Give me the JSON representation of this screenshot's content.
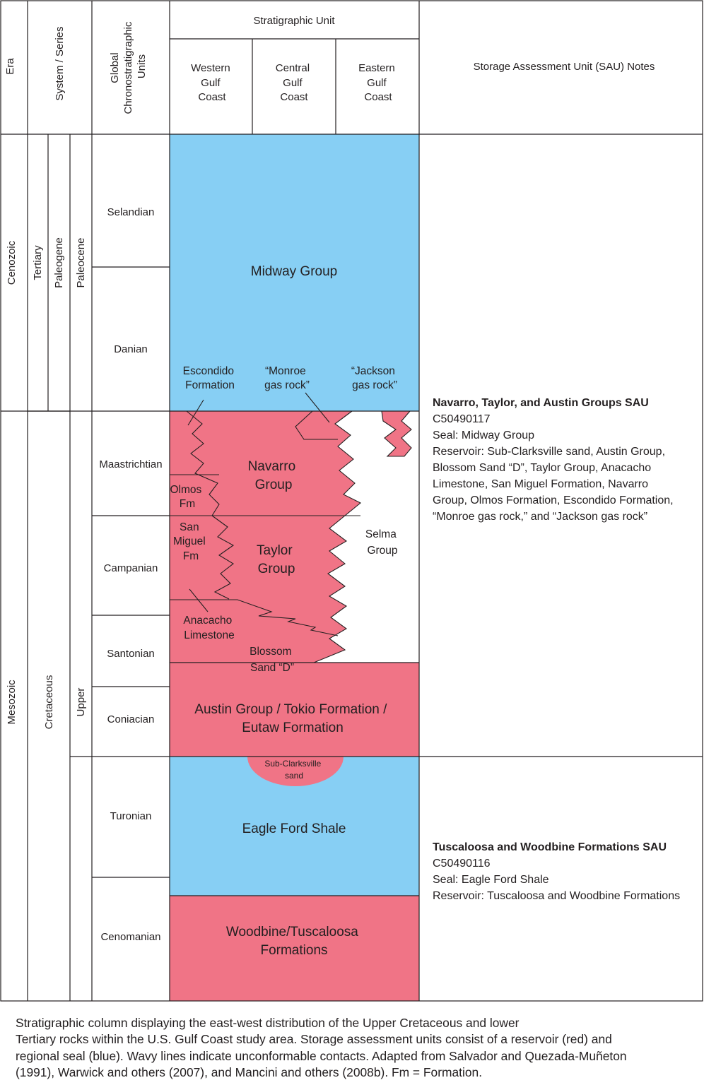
{
  "colors": {
    "reservoir": "#f07486",
    "seal": "#87cff4",
    "line": "#231f20",
    "background": "#ffffff"
  },
  "headers": {
    "era": "Era",
    "system_series": "System / Series",
    "global_units": [
      "Global",
      "Chronostratigraphic",
      "Units"
    ],
    "strat_unit": "Stratigraphic Unit",
    "western": [
      "Western",
      "Gulf",
      "Coast"
    ],
    "central": [
      "Central",
      "Gulf",
      "Coast"
    ],
    "eastern": [
      "Eastern",
      "Gulf",
      "Coast"
    ],
    "sau_notes": "Storage Assessment Unit (SAU) Notes"
  },
  "era": {
    "cenozoic": "Cenozoic",
    "mesozoic": "Mesozoic"
  },
  "system": {
    "tertiary": "Tertiary",
    "paleogene": "Paleogene",
    "paleocene": "Paleocene",
    "cretaceous": "Cretaceous",
    "upper": "Upper"
  },
  "stages": [
    "Selandian",
    "Danian",
    "Maastrichtian",
    "Campanian",
    "Santonian",
    "Coniacian",
    "Turonian",
    "Cenomanian"
  ],
  "units": {
    "midway": "Midway Group",
    "escondido": [
      "Escondido",
      "Formation"
    ],
    "monroe": [
      "“Monroe",
      "gas rock”"
    ],
    "jackson": [
      "“Jackson",
      "gas rock”"
    ],
    "navarro": [
      "Navarro",
      "Group"
    ],
    "olmos": [
      "Olmos",
      "Fm"
    ],
    "san_miguel": [
      "San",
      "Miguel",
      "Fm"
    ],
    "taylor": [
      "Taylor",
      "Group"
    ],
    "selma": [
      "Selma",
      "Group"
    ],
    "anacacho": [
      "Anacacho",
      "Limestone"
    ],
    "blossom": [
      "Blossom",
      "Sand “D”"
    ],
    "austin": [
      "Austin Group / Tokio Formation /",
      "Eutaw Formation"
    ],
    "sub_clarksville": [
      "Sub-Clarksville",
      "sand"
    ],
    "eagle_ford": "Eagle Ford Shale",
    "woodbine": [
      "Woodbine/Tuscaloosa",
      "Formations"
    ]
  },
  "sau": {
    "navarro": {
      "title": "Navarro, Taylor, and Austin Groups SAU",
      "id": "C50490117",
      "seal": "Seal: Midway Group",
      "reservoir": [
        "Reservoir: Sub-Clarksville sand, Austin Group,",
        "Blossom Sand “D”, Taylor Group, Anacacho",
        "Limestone, San Miguel Formation, Navarro",
        "Group, Olmos Formation, Escondido Formation,",
        "“Monroe gas rock,” and “Jackson gas rock”"
      ]
    },
    "tuscaloosa": {
      "title": "Tuscaloosa and Woodbine Formations SAU",
      "id": "C50490116",
      "seal": "Seal: Eagle Ford Shale",
      "reservoir": "Reservoir: Tuscaloosa and Woodbine Formations"
    }
  },
  "caption": [
    "Stratigraphic column displaying the east-west distribution of the Upper Cretaceous and lower",
    "Tertiary rocks within the U.S. Gulf Coast study area. Storage assessment units consist of a reservoir (red) and",
    "regional seal (blue). Wavy lines indicate unconformable contacts. Adapted from Salvador and Quezada-Muñeton",
    "(1991), Warwick and others (2007), and Mancini and others (2008b). Fm = Formation."
  ]
}
